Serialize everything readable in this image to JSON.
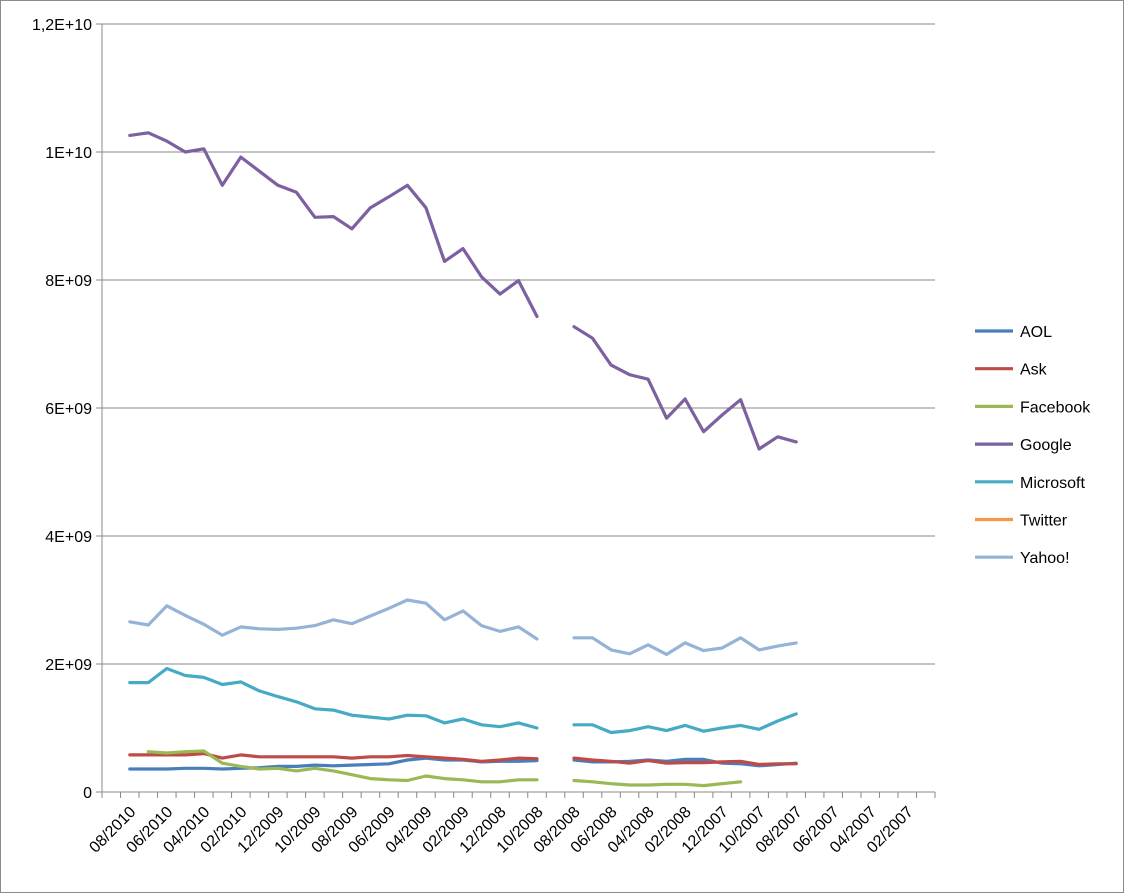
{
  "chart_data": {
    "type": "line",
    "title": "",
    "xlabel": "",
    "ylabel": "",
    "ylim": [
      0,
      12000000000
    ],
    "y_ticks": [
      0,
      2000000000,
      4000000000,
      6000000000,
      8000000000,
      10000000000,
      12000000000
    ],
    "y_tick_labels": [
      "0",
      "2E+09",
      "4E+09",
      "6E+09",
      "8E+09",
      "1E+10",
      "1,2E+10"
    ],
    "x_categories": [
      "09/2010",
      "08/2010",
      "07/2010",
      "06/2010",
      "05/2010",
      "04/2010",
      "03/2010",
      "02/2010",
      "01/2010",
      "12/2009",
      "11/2009",
      "10/2009",
      "09/2009",
      "08/2009",
      "07/2009",
      "06/2009",
      "05/2009",
      "04/2009",
      "03/2009",
      "02/2009",
      "01/2009",
      "12/2008",
      "11/2008",
      "10/2008",
      "09/2008",
      "08/2008",
      "07/2008",
      "06/2008",
      "05/2008",
      "04/2008",
      "03/2008",
      "02/2008",
      "01/2008",
      "12/2007",
      "11/2007",
      "10/2007",
      "09/2007",
      "08/2007",
      "07/2007",
      "06/2007",
      "05/2007",
      "04/2007",
      "03/2007",
      "02/2007",
      "01/2007"
    ],
    "x_tick_labels_shown": [
      "08/2010",
      "06/2010",
      "04/2010",
      "02/2010",
      "12/2009",
      "10/2009",
      "08/2009",
      "06/2009",
      "04/2009",
      "02/2009",
      "12/2008",
      "10/2008",
      "08/2008",
      "06/2008",
      "04/2008",
      "02/2008",
      "12/2007",
      "10/2007",
      "08/2007",
      "06/2007",
      "04/2007",
      "02/2007"
    ],
    "grid": "horizontal",
    "legend_position": "right",
    "series": [
      {
        "name": "AOL",
        "color": "#4a7ebb",
        "values": [
          null,
          360000000.0,
          360000000.0,
          360000000.0,
          370000000.0,
          370000000.0,
          360000000.0,
          370000000.0,
          380000000.0,
          400000000.0,
          400000000.0,
          420000000.0,
          410000000.0,
          420000000.0,
          430000000.0,
          440000000.0,
          500000000.0,
          530000000.0,
          500000000.0,
          500000000.0,
          470000000.0,
          480000000.0,
          480000000.0,
          490000000.0,
          null,
          500000000.0,
          470000000.0,
          470000000.0,
          480000000.0,
          500000000.0,
          480000000.0,
          510000000.0,
          510000000.0,
          450000000.0,
          440000000.0,
          410000000.0,
          430000000.0,
          450000000.0,
          null,
          null,
          null,
          null,
          null,
          null,
          null
        ]
      },
      {
        "name": "Ask",
        "color": "#be4b48",
        "values": [
          null,
          580000000.0,
          580000000.0,
          580000000.0,
          580000000.0,
          600000000.0,
          530000000.0,
          580000000.0,
          550000000.0,
          550000000.0,
          550000000.0,
          550000000.0,
          550000000.0,
          530000000.0,
          550000000.0,
          550000000.0,
          570000000.0,
          550000000.0,
          530000000.0,
          510000000.0,
          480000000.0,
          500000000.0,
          530000000.0,
          520000000.0,
          null,
          530000000.0,
          500000000.0,
          480000000.0,
          450000000.0,
          490000000.0,
          450000000.0,
          460000000.0,
          460000000.0,
          470000000.0,
          480000000.0,
          430000000.0,
          440000000.0,
          440000000.0,
          null,
          null,
          null,
          null,
          null,
          null,
          null
        ]
      },
      {
        "name": "Facebook",
        "color": "#98b954",
        "values": [
          null,
          null,
          630000000.0,
          610000000.0,
          630000000.0,
          640000000.0,
          450000000.0,
          400000000.0,
          360000000.0,
          370000000.0,
          330000000.0,
          370000000.0,
          330000000.0,
          270000000.0,
          210000000.0,
          190000000.0,
          180000000.0,
          250000000.0,
          210000000.0,
          190000000.0,
          160000000.0,
          160000000.0,
          190000000.0,
          190000000.0,
          null,
          180000000.0,
          160000000.0,
          130000000.0,
          110000000.0,
          110000000.0,
          120000000.0,
          120000000.0,
          100000000.0,
          130000000.0,
          160000000.0,
          null,
          null,
          null,
          null,
          null,
          null,
          null,
          null,
          null,
          null
        ]
      },
      {
        "name": "Google",
        "color": "#7d60a0",
        "values": [
          null,
          10260000000.0,
          10300000000.0,
          10170000000.0,
          10000000000.0,
          10050000000.0,
          9480000000.0,
          9920000000.0,
          9700000000.0,
          9480000000.0,
          9370000000.0,
          8980000000.0,
          8990000000.0,
          8800000000.0,
          9130000000.0,
          9300000000.0,
          9480000000.0,
          9130000000.0,
          8290000000.0,
          8490000000.0,
          8050000000.0,
          7780000000.0,
          7990000000.0,
          7430000000.0,
          null,
          7270000000.0,
          7090000000.0,
          6670000000.0,
          6520000000.0,
          6450000000.0,
          5840000000.0,
          6140000000.0,
          5630000000.0,
          5890000000.0,
          6130000000.0,
          5360000000.0,
          5550000000.0,
          5470000000.0,
          null,
          null,
          null,
          null,
          null,
          null,
          null
        ]
      },
      {
        "name": "Microsoft",
        "color": "#46aac5",
        "values": [
          null,
          1710000000.0,
          1710000000.0,
          1930000000.0,
          1820000000.0,
          1790000000.0,
          1680000000.0,
          1720000000.0,
          1580000000.0,
          1490000000.0,
          1410000000.0,
          1300000000.0,
          1280000000.0,
          1200000000.0,
          1170000000.0,
          1140000000.0,
          1200000000.0,
          1190000000.0,
          1080000000.0,
          1140000000.0,
          1050000000.0,
          1020000000.0,
          1080000000.0,
          1000000000.0,
          null,
          1050000000.0,
          1050000000.0,
          930000000.0,
          960000000.0,
          1020000000.0,
          960000000.0,
          1040000000.0,
          950000000.0,
          1000000000.0,
          1040000000.0,
          980000000.0,
          1110000000.0,
          1220000000.0,
          null,
          null,
          null,
          null,
          null,
          null,
          null
        ]
      },
      {
        "name": "Twitter",
        "color": "#f79646",
        "values": [
          null,
          null,
          null,
          null,
          null,
          null,
          null,
          null,
          null,
          null,
          null,
          null,
          null,
          null,
          null,
          null,
          null,
          null,
          null,
          null,
          null,
          null,
          null,
          null,
          null,
          null,
          null,
          null,
          null,
          null,
          null,
          null,
          null,
          null,
          null,
          null,
          null,
          null,
          null,
          null,
          null,
          null,
          null,
          null,
          null
        ]
      },
      {
        "name": "Yahoo!",
        "color": "#95b3d7",
        "values": [
          null,
          2660000000.0,
          2610000000.0,
          2910000000.0,
          2760000000.0,
          2620000000.0,
          2450000000.0,
          2580000000.0,
          2550000000.0,
          2540000000.0,
          2560000000.0,
          2600000000.0,
          2690000000.0,
          2630000000.0,
          2750000000.0,
          2870000000.0,
          3000000000.0,
          2950000000.0,
          2690000000.0,
          2830000000.0,
          2600000000.0,
          2510000000.0,
          2580000000.0,
          2390000000.0,
          null,
          2410000000.0,
          2410000000.0,
          2220000000.0,
          2160000000.0,
          2300000000.0,
          2150000000.0,
          2330000000.0,
          2210000000.0,
          2250000000.0,
          2410000000.0,
          2220000000.0,
          2280000000.0,
          2330000000.0,
          null,
          null,
          null,
          null,
          null,
          null,
          null
        ]
      }
    ]
  }
}
